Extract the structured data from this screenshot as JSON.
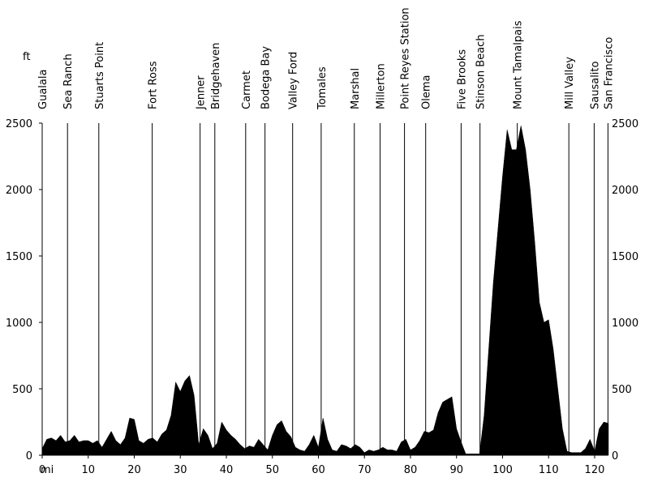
{
  "chart_data": {
    "type": "area",
    "x_label": "mi",
    "y_label": "ft",
    "color": "#000000",
    "x": [
      0,
      1,
      2,
      3,
      4,
      5,
      6,
      7,
      8,
      9,
      10,
      11,
      12,
      13,
      14,
      15,
      16,
      17,
      18,
      19,
      20,
      21,
      22,
      23,
      24,
      25,
      26,
      27,
      28,
      29,
      30,
      31,
      32,
      33,
      34,
      35,
      36,
      37,
      38,
      39,
      40,
      41,
      42,
      43,
      44,
      45,
      46,
      47,
      48,
      49,
      50,
      51,
      52,
      53,
      54,
      55,
      56,
      57,
      58,
      59,
      60,
      61,
      62,
      63,
      64,
      65,
      66,
      67,
      68,
      69,
      70,
      71,
      72,
      73,
      74,
      75,
      76,
      77,
      78,
      79,
      80,
      81,
      82,
      83,
      84,
      85,
      86,
      87,
      88,
      89,
      90,
      91,
      92,
      93,
      94,
      95,
      96,
      97,
      98,
      99,
      100,
      101,
      102,
      103,
      104,
      105,
      106,
      107,
      108,
      109,
      110,
      111,
      112,
      113,
      114,
      115,
      116,
      117,
      118,
      119,
      120,
      121,
      122,
      123
    ],
    "values": [
      50,
      120,
      130,
      110,
      150,
      100,
      110,
      150,
      100,
      110,
      110,
      90,
      110,
      60,
      120,
      180,
      110,
      80,
      130,
      280,
      270,
      110,
      90,
      120,
      130,
      100,
      160,
      190,
      300,
      550,
      480,
      560,
      600,
      450,
      80,
      200,
      150,
      50,
      90,
      250,
      190,
      150,
      120,
      80,
      50,
      70,
      60,
      120,
      80,
      40,
      150,
      230,
      260,
      180,
      140,
      60,
      40,
      30,
      80,
      150,
      60,
      280,
      120,
      40,
      30,
      80,
      70,
      50,
      80,
      60,
      20,
      40,
      30,
      40,
      60,
      40,
      40,
      30,
      100,
      120,
      40,
      60,
      110,
      180,
      170,
      190,
      320,
      400,
      420,
      440,
      200,
      100,
      10,
      10,
      10,
      10,
      300,
      800,
      1300,
      1700,
      2100,
      2450,
      2300,
      2300,
      2480,
      2300,
      2000,
      1600,
      1150,
      1000,
      1020,
      800,
      500,
      200,
      30,
      20,
      20,
      20,
      50,
      120,
      30,
      200,
      250,
      240
    ],
    "xlim": [
      0,
      123
    ],
    "ylim": [
      0,
      2500
    ],
    "xticks": [
      0,
      10,
      20,
      30,
      40,
      50,
      60,
      70,
      80,
      90,
      100,
      110,
      120
    ],
    "yticks": [
      0,
      500,
      1000,
      1500,
      2000,
      2500
    ],
    "waypoints": [
      {
        "name": "Gualala",
        "x": 0
      },
      {
        "name": "Sea Ranch",
        "x": 5.5
      },
      {
        "name": "Stuarts Point",
        "x": 12.3
      },
      {
        "name": "Fort Ross",
        "x": 23.9
      },
      {
        "name": "Jenner",
        "x": 34.3
      },
      {
        "name": "Bridgehaven",
        "x": 37.5
      },
      {
        "name": "Carmet",
        "x": 44.2
      },
      {
        "name": "Bodega Bay",
        "x": 48.4
      },
      {
        "name": "Valley Ford",
        "x": 54.4
      },
      {
        "name": "Tomales",
        "x": 60.6
      },
      {
        "name": "Marshal",
        "x": 67.8
      },
      {
        "name": "Millerton",
        "x": 73.4
      },
      {
        "name": "Point Reyes Station",
        "x": 78.7
      },
      {
        "name": "Olema",
        "x": 83.3
      },
      {
        "name": "Five Brooks",
        "x": 91.0
      },
      {
        "name": "Stinson Beach",
        "x": 95.1
      },
      {
        "name": "Mount Tamalpais",
        "x": 103.2
      },
      {
        "name": "Mill Valley",
        "x": 114.4
      },
      {
        "name": "Sausalito",
        "x": 119.9
      },
      {
        "name": "San Francisco",
        "x": 122.9
      }
    ]
  }
}
